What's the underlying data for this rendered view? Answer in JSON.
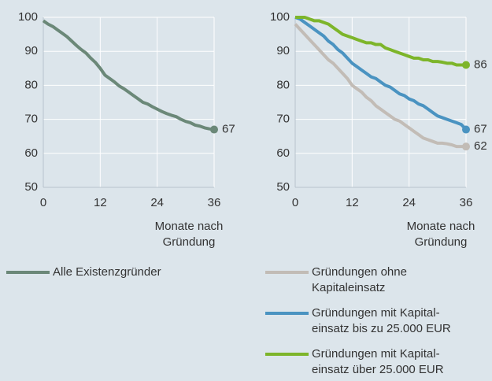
{
  "chart_data": [
    {
      "type": "line",
      "x": [
        0,
        1,
        2,
        3,
        4,
        5,
        6,
        7,
        8,
        9,
        10,
        11,
        12,
        13,
        14,
        15,
        16,
        17,
        18,
        19,
        20,
        21,
        22,
        23,
        24,
        25,
        26,
        27,
        28,
        29,
        30,
        31,
        32,
        33,
        34,
        35,
        36
      ],
      "xlim": [
        0,
        36
      ],
      "xticks": [
        0,
        12,
        24,
        36
      ],
      "ylim": [
        50,
        100
      ],
      "yticks": [
        50,
        60,
        70,
        80,
        90,
        100
      ],
      "xlabel": [
        "Monate nach",
        "Gründung"
      ],
      "grid": true,
      "series": [
        {
          "name": [
            "Alle Existenzgründer"
          ],
          "color": "#6b8878",
          "values": [
            99,
            98,
            97.3,
            96.3,
            95.3,
            94.3,
            93,
            91.7,
            90.5,
            89.5,
            88,
            86.7,
            85,
            83,
            82,
            81,
            79.8,
            79,
            78,
            77,
            76,
            75,
            74.5,
            73.7,
            73,
            72.3,
            71.7,
            71.2,
            70.8,
            70,
            69.4,
            69,
            68.3,
            68,
            67.5,
            67.2,
            67
          ]
        }
      ]
    },
    {
      "type": "line",
      "x": [
        0,
        1,
        2,
        3,
        4,
        5,
        6,
        7,
        8,
        9,
        10,
        11,
        12,
        13,
        14,
        15,
        16,
        17,
        18,
        19,
        20,
        21,
        22,
        23,
        24,
        25,
        26,
        27,
        28,
        29,
        30,
        31,
        32,
        33,
        34,
        35,
        36
      ],
      "xlim": [
        0,
        36
      ],
      "xticks": [
        0,
        12,
        24,
        36
      ],
      "ylim": [
        50,
        100
      ],
      "yticks": [
        50,
        60,
        70,
        80,
        90,
        100
      ],
      "xlabel": [
        "Monate nach",
        "Gründung"
      ],
      "grid": true,
      "series": [
        {
          "name": [
            "Gründungen ohne",
            "Kapitaleinsatz"
          ],
          "color": "#c2bcb6",
          "values": [
            98,
            96.5,
            95,
            93.5,
            92,
            90.5,
            89,
            87.5,
            86.5,
            85,
            83.5,
            82,
            80,
            79,
            78,
            76.5,
            75.5,
            74,
            73,
            72,
            71,
            70,
            69.5,
            68.5,
            67.5,
            66.5,
            65.5,
            64.5,
            64,
            63.5,
            63,
            63,
            62.8,
            62.5,
            62,
            62,
            62
          ]
        },
        {
          "name": [
            "Gründungen mit Kapital-",
            "einsatz bis zu 25.000 EUR"
          ],
          "color": "#4a93c1",
          "values": [
            100,
            99.5,
            98.5,
            97.5,
            96.5,
            95.5,
            94.5,
            93,
            92,
            90.5,
            89.5,
            88,
            86.5,
            85.5,
            84.5,
            83.5,
            82.5,
            82,
            81,
            80,
            79.5,
            78.5,
            77.5,
            77,
            76,
            75.5,
            74.5,
            74,
            73,
            72,
            71,
            70.5,
            70,
            69.5,
            69,
            68.5,
            67
          ]
        },
        {
          "name": [
            "Gründungen mit Kapital-",
            "einsatz über 25.000 EUR"
          ],
          "color": "#7db52a",
          "values": [
            100,
            100,
            100,
            99.5,
            99,
            99,
            98.5,
            98,
            97,
            96,
            95,
            94.5,
            94,
            93.5,
            93,
            92.5,
            92.5,
            92,
            92,
            91,
            90.5,
            90,
            89.5,
            89,
            88.5,
            88,
            88,
            87.5,
            87.5,
            87,
            87,
            86.8,
            86.5,
            86.5,
            86,
            86,
            86
          ]
        }
      ]
    }
  ]
}
